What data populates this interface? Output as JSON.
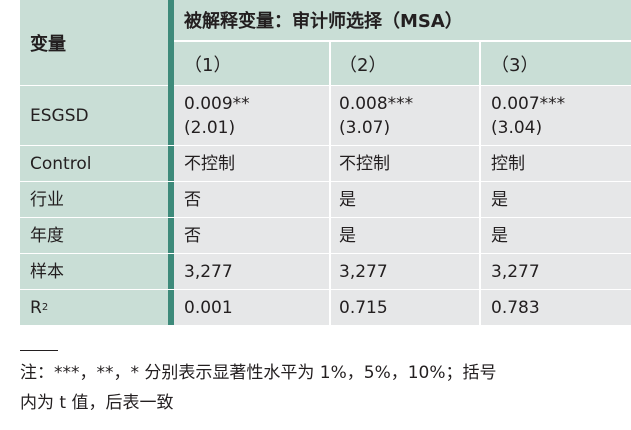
{
  "table": {
    "var_header": "变量",
    "dep_title": "被解释变量：审计师选择（MSA）",
    "col_labels": [
      "（1）",
      "（2）",
      "（3）"
    ],
    "rows": [
      {
        "label": "ESGSD",
        "cells": [
          [
            "0.009**",
            "(2.01)"
          ],
          [
            "0.008***",
            "(3.07)"
          ],
          [
            "0.007***",
            "(3.04)"
          ]
        ]
      },
      {
        "label": "Control",
        "cells": [
          [
            "不控制"
          ],
          [
            "不控制"
          ],
          [
            "控制"
          ]
        ]
      },
      {
        "label": "行业",
        "cells": [
          [
            "否"
          ],
          [
            "是"
          ],
          [
            "是"
          ]
        ]
      },
      {
        "label": "年度",
        "cells": [
          [
            "否"
          ],
          [
            "是"
          ],
          [
            "是"
          ]
        ]
      },
      {
        "label": "样本",
        "cells": [
          [
            "3,277"
          ],
          [
            "3,277"
          ],
          [
            "3,277"
          ]
        ]
      },
      {
        "label": "R",
        "label_sup": "2",
        "cells": [
          [
            "0.001"
          ],
          [
            "0.715"
          ],
          [
            "0.783"
          ]
        ]
      }
    ]
  },
  "note": {
    "line1": "注：***，**，* 分别表示显著性水平为 1%，5%，10%；括号",
    "line2": "内为 t 值，后表一致"
  },
  "colors": {
    "header_bg": "#c9ded6",
    "accent_bar": "#3d8a7a",
    "data_bg": "#e6e7e8"
  }
}
